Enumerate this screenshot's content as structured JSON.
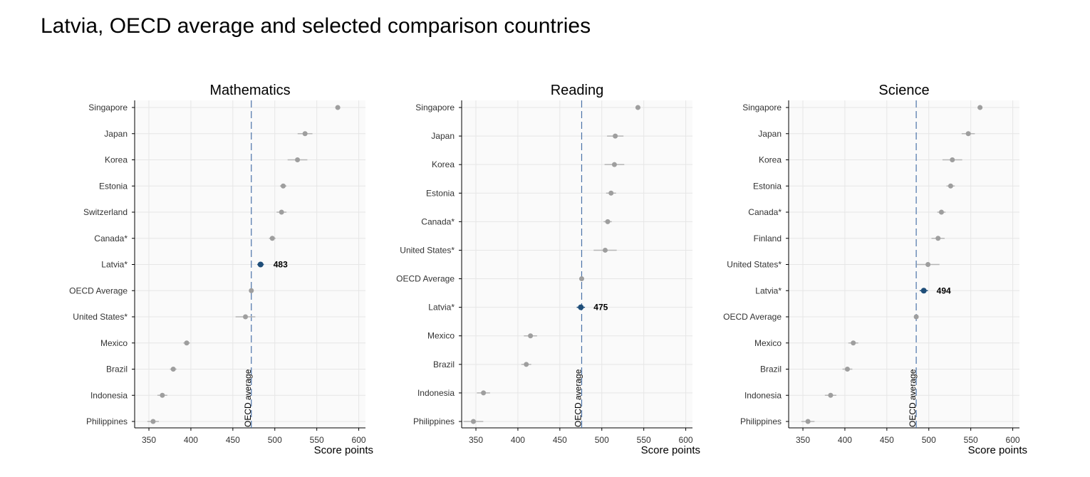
{
  "page": {
    "title": "Latvia, OECD average and selected comparison countries"
  },
  "colors": {
    "highlight": "#1f4e79",
    "point": "#9e9e9e",
    "error_bar": "#b5b5b5",
    "reference_line": "#4a72a8",
    "plot_background": "#fafafa",
    "grid": "#e6e6e6"
  },
  "chart_data": [
    {
      "type": "scatter",
      "title": "Mathematics",
      "xlabel": "Score points",
      "ylabel": "",
      "xlim": [
        333,
        608
      ],
      "xticks": [
        350,
        400,
        450,
        500,
        550,
        600
      ],
      "grid": true,
      "reference_line": {
        "value": 472,
        "label": "OECD average"
      },
      "highlight": {
        "category": "Latvia*",
        "label": "483"
      },
      "categories": [
        "Singapore",
        "Japan",
        "Korea",
        "Estonia",
        "Switzerland",
        "Canada*",
        "Latvia*",
        "OECD Average",
        "United States*",
        "Mexico",
        "Brazil",
        "Indonesia",
        "Philippines"
      ],
      "values": [
        575,
        536,
        527,
        510,
        508,
        497,
        483,
        472,
        465,
        395,
        379,
        366,
        355
      ],
      "errors": [
        1.5,
        4.5,
        6,
        2,
        3,
        2,
        2,
        0.5,
        6,
        2,
        2,
        3,
        3.5
      ]
    },
    {
      "type": "scatter",
      "title": "Reading",
      "xlabel": "Score points",
      "ylabel": "",
      "xlim": [
        333,
        608
      ],
      "xticks": [
        350,
        400,
        450,
        500,
        550,
        600
      ],
      "grid": true,
      "reference_line": {
        "value": 476,
        "label": "OECD average"
      },
      "highlight": {
        "category": "Latvia*",
        "label": "475"
      },
      "categories": [
        "Singapore",
        "Japan",
        "Korea",
        "Estonia",
        "Canada*",
        "United States*",
        "OECD Average",
        "Latvia*",
        "Mexico",
        "Brazil",
        "Indonesia",
        "Philippines"
      ],
      "values": [
        543,
        516,
        515,
        511,
        507,
        504,
        476,
        475,
        415,
        410,
        359,
        347
      ],
      "errors": [
        1.5,
        5,
        6,
        3,
        2.5,
        7,
        0.5,
        2.5,
        4,
        3,
        4,
        6
      ]
    },
    {
      "type": "scatter",
      "title": "Science",
      "xlabel": "Score points",
      "ylabel": "",
      "xlim": [
        333,
        608
      ],
      "xticks": [
        350,
        400,
        450,
        500,
        550,
        600
      ],
      "grid": true,
      "reference_line": {
        "value": 485,
        "label": "OECD average"
      },
      "highlight": {
        "category": "Latvia*",
        "label": "494"
      },
      "categories": [
        "Singapore",
        "Japan",
        "Korea",
        "Estonia",
        "Canada*",
        "Finland",
        "United States*",
        "Latvia*",
        "OECD Average",
        "Mexico",
        "Brazil",
        "Indonesia",
        "Philippines"
      ],
      "values": [
        561,
        547,
        528,
        526,
        515,
        511,
        499,
        494,
        485,
        410,
        403,
        383,
        356
      ],
      "errors": [
        1.5,
        4,
        6,
        2.5,
        2.5,
        4,
        7,
        2.5,
        0.5,
        3,
        3,
        3.5,
        4
      ]
    }
  ]
}
